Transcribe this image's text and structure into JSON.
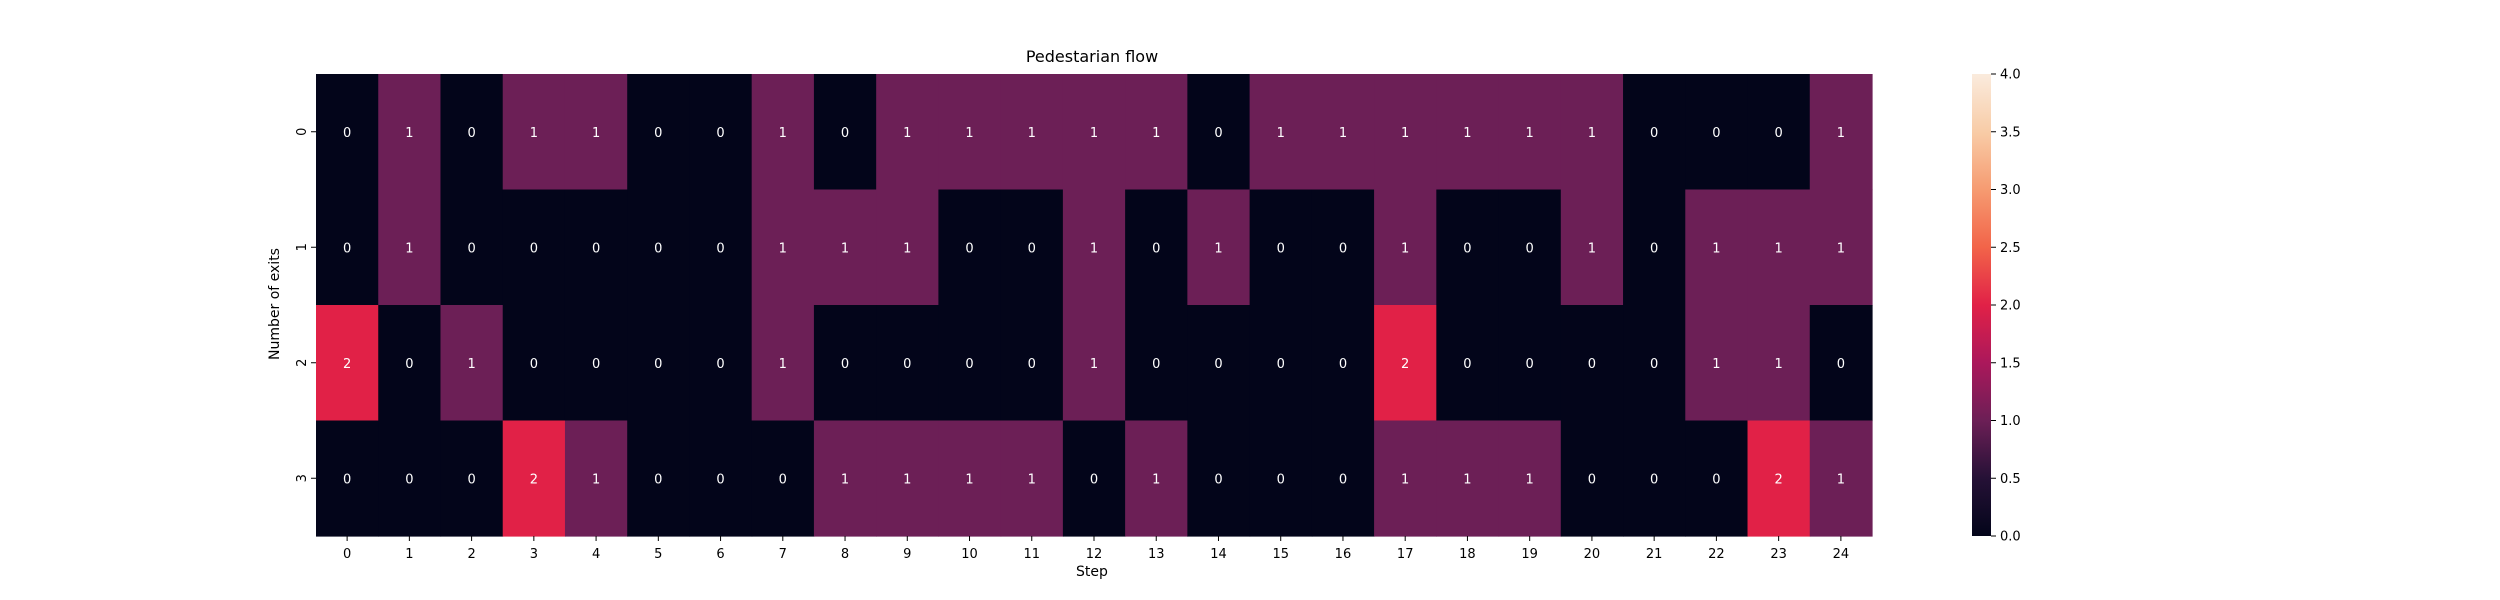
{
  "chart_data": {
    "type": "heatmap",
    "title": "Pedestarian flow",
    "xlabel": "Step",
    "ylabel": "Number of exits",
    "x_categories": [
      "0",
      "1",
      "2",
      "3",
      "4",
      "5",
      "6",
      "7",
      "8",
      "9",
      "10",
      "11",
      "12",
      "13",
      "14",
      "15",
      "16",
      "17",
      "18",
      "19",
      "20",
      "21",
      "22",
      "23",
      "24"
    ],
    "y_categories": [
      "0",
      "1",
      "2",
      "3"
    ],
    "values": [
      [
        0,
        1,
        0,
        1,
        1,
        0,
        0,
        1,
        0,
        1,
        1,
        1,
        1,
        1,
        0,
        1,
        1,
        1,
        1,
        1,
        1,
        0,
        0,
        0,
        1
      ],
      [
        0,
        1,
        0,
        0,
        0,
        0,
        0,
        1,
        1,
        1,
        0,
        0,
        1,
        0,
        1,
        0,
        0,
        1,
        0,
        0,
        1,
        0,
        1,
        1,
        1
      ],
      [
        2,
        0,
        1,
        0,
        0,
        0,
        0,
        1,
        0,
        0,
        0,
        0,
        1,
        0,
        0,
        0,
        0,
        2,
        0,
        0,
        0,
        0,
        1,
        1,
        0
      ],
      [
        0,
        0,
        0,
        2,
        1,
        0,
        0,
        0,
        1,
        1,
        1,
        1,
        0,
        1,
        0,
        0,
        0,
        1,
        1,
        1,
        0,
        0,
        0,
        2,
        1
      ]
    ],
    "colorbar": {
      "vmin": 0,
      "vmax": 4,
      "ticks": [
        "0.0",
        "0.5",
        "1.0",
        "1.5",
        "2.0",
        "2.5",
        "3.0",
        "3.5",
        "4.0"
      ],
      "colormap": "rocket"
    },
    "annotations": true
  }
}
